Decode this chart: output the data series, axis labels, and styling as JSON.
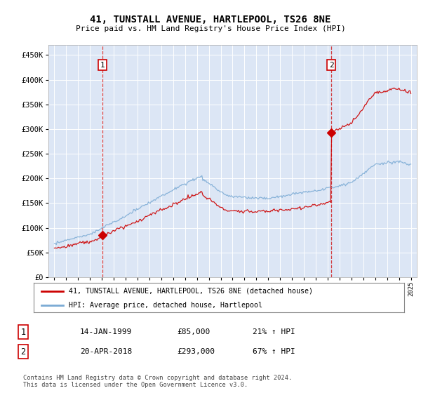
{
  "title": "41, TUNSTALL AVENUE, HARTLEPOOL, TS26 8NE",
  "subtitle": "Price paid vs. HM Land Registry's House Price Index (HPI)",
  "background_color": "#dce6f5",
  "red_line_color": "#cc0000",
  "blue_line_color": "#7aaad4",
  "dashed_line_color": "#cc0000",
  "marker1_x": 1999.04,
  "marker1_y": 85000,
  "marker1_label": "1",
  "marker2_x": 2018.3,
  "marker2_y": 293000,
  "marker2_label": "2",
  "ylim": [
    0,
    470000
  ],
  "xlim": [
    1994.5,
    2025.5
  ],
  "yticks": [
    0,
    50000,
    100000,
    150000,
    200000,
    250000,
    300000,
    350000,
    400000,
    450000
  ],
  "xticks": [
    1995,
    1996,
    1997,
    1998,
    1999,
    2000,
    2001,
    2002,
    2003,
    2004,
    2005,
    2006,
    2007,
    2008,
    2009,
    2010,
    2011,
    2012,
    2013,
    2014,
    2015,
    2016,
    2017,
    2018,
    2019,
    2020,
    2021,
    2022,
    2023,
    2024,
    2025
  ],
  "legend_label_red": "41, TUNSTALL AVENUE, HARTLEPOOL, TS26 8NE (detached house)",
  "legend_label_blue": "HPI: Average price, detached house, Hartlepool",
  "note1_label": "1",
  "note1_date": "14-JAN-1999",
  "note1_price": "£85,000",
  "note1_hpi": "21% ↑ HPI",
  "note2_label": "2",
  "note2_date": "20-APR-2018",
  "note2_price": "£293,000",
  "note2_hpi": "67% ↑ HPI",
  "footer": "Contains HM Land Registry data © Crown copyright and database right 2024.\nThis data is licensed under the Open Government Licence v3.0."
}
